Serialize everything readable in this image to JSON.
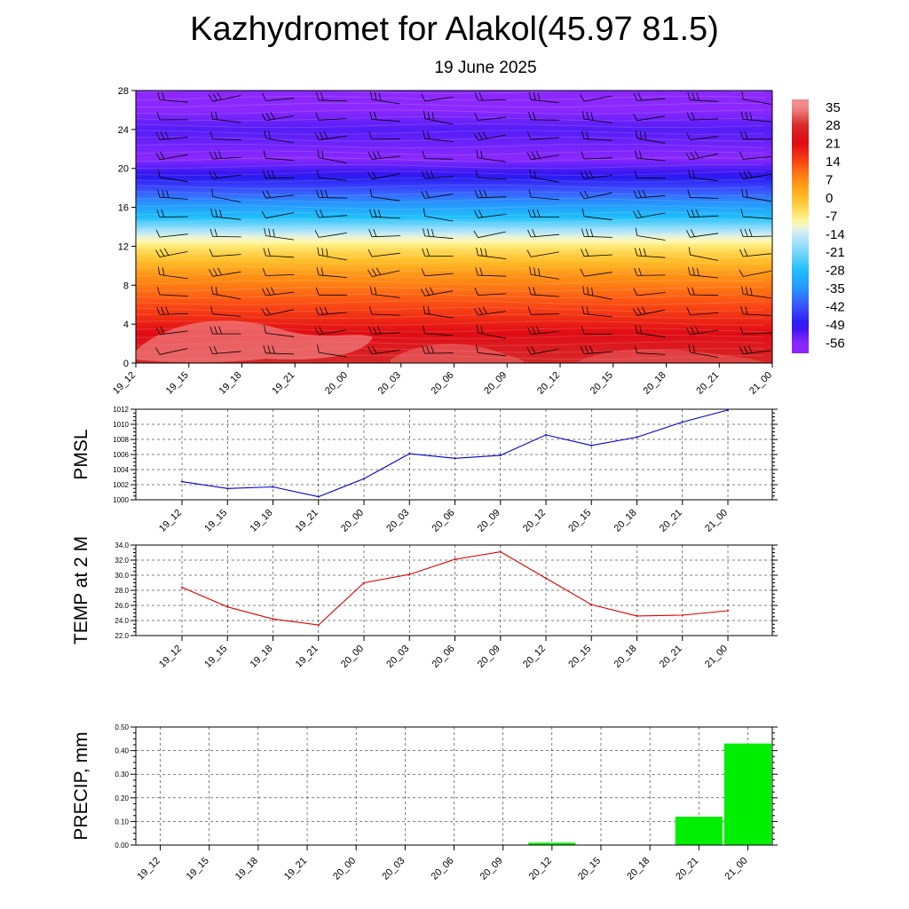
{
  "title": "Kazhydromet for Alakol(45.97 81.5)",
  "subtitle": "19 June 2025",
  "time_labels": [
    "19_12",
    "19_15",
    "19_18",
    "19_21",
    "20_00",
    "20_03",
    "20_06",
    "20_09",
    "20_12",
    "20_15",
    "20_18",
    "20_21",
    "21_00"
  ],
  "colors": {
    "pmsl_line": "#0000cc",
    "temp_line": "#dd0000",
    "precip_bar": "#00ee00"
  },
  "chart_data": [
    {
      "type": "heatmap",
      "title": "",
      "xlabel": "",
      "ylabel": "",
      "x": [
        "19_12",
        "19_15",
        "19_18",
        "19_21",
        "20_00",
        "20_03",
        "20_06",
        "20_09",
        "20_12",
        "20_15",
        "20_18",
        "20_21",
        "21_00"
      ],
      "y_ticks": [
        0,
        4,
        8,
        12,
        16,
        20,
        24,
        28
      ],
      "ylim": [
        0,
        28
      ],
      "temperature_profile": [
        {
          "level": 0,
          "value": 28
        },
        {
          "level": 2,
          "value": 24
        },
        {
          "level": 5,
          "value": 16
        },
        {
          "level": 9,
          "value": 6
        },
        {
          "level": 11.5,
          "value": -4
        },
        {
          "level": 13,
          "value": -12
        },
        {
          "level": 15,
          "value": -28
        },
        {
          "level": 17,
          "value": -38
        },
        {
          "level": 19,
          "value": -48
        },
        {
          "level": 21,
          "value": -56
        },
        {
          "level": 24,
          "value": -52
        },
        {
          "level": 28,
          "value": -60
        }
      ],
      "colorbar": {
        "labels": [
          "35",
          "28",
          "21",
          "14",
          "7",
          "0",
          "-7",
          "-14",
          "-21",
          "-28",
          "-35",
          "-42",
          "-49",
          "-56"
        ]
      },
      "overlay": "wind barbs",
      "grid": false
    },
    {
      "type": "line",
      "ylabel": "PMSL",
      "x": [
        "19_12",
        "19_15",
        "19_18",
        "19_21",
        "20_00",
        "20_03",
        "20_06",
        "20_09",
        "20_12",
        "20_15",
        "20_18",
        "20_21",
        "21_00"
      ],
      "values": [
        1002.4,
        1001.5,
        1001.7,
        1000.4,
        1002.8,
        1006.1,
        1005.5,
        1005.9,
        1008.6,
        1007.2,
        1008.3,
        1010.3,
        1011.9
      ],
      "y_ticks": [
        "1000",
        "1002",
        "1004",
        "1006",
        "1008",
        "1010",
        "1012"
      ],
      "ylim": [
        1000,
        1012
      ],
      "grid": true
    },
    {
      "type": "line",
      "ylabel": "TEMP at 2 M",
      "x": [
        "19_12",
        "19_15",
        "19_18",
        "19_21",
        "20_00",
        "20_03",
        "20_06",
        "20_09",
        "20_12",
        "20_15",
        "20_18",
        "20_21",
        "21_00"
      ],
      "values": [
        28.4,
        25.8,
        24.2,
        23.4,
        29.0,
        30.1,
        32.1,
        33.1,
        29.6,
        26.1,
        24.6,
        24.7,
        25.3
      ],
      "y_ticks": [
        "22.0",
        "24.0",
        "26.0",
        "28.0",
        "30.0",
        "32.0",
        "34.0"
      ],
      "ylim": [
        22,
        34
      ],
      "grid": true
    },
    {
      "type": "bar",
      "ylabel": "PRECIP, mm",
      "categories": [
        "19_12",
        "19_15",
        "19_18",
        "19_21",
        "20_00",
        "20_03",
        "20_06",
        "20_09",
        "20_12",
        "20_15",
        "20_18",
        "20_21",
        "21_00"
      ],
      "values": [
        0,
        0,
        0,
        0,
        0,
        0,
        0,
        0,
        0.01,
        0,
        0,
        0.12,
        0.43
      ],
      "y_ticks": [
        "0.00",
        "0.10",
        "0.20",
        "0.30",
        "0.40",
        "0.50"
      ],
      "ylim": [
        0,
        0.5
      ],
      "grid": true
    }
  ]
}
